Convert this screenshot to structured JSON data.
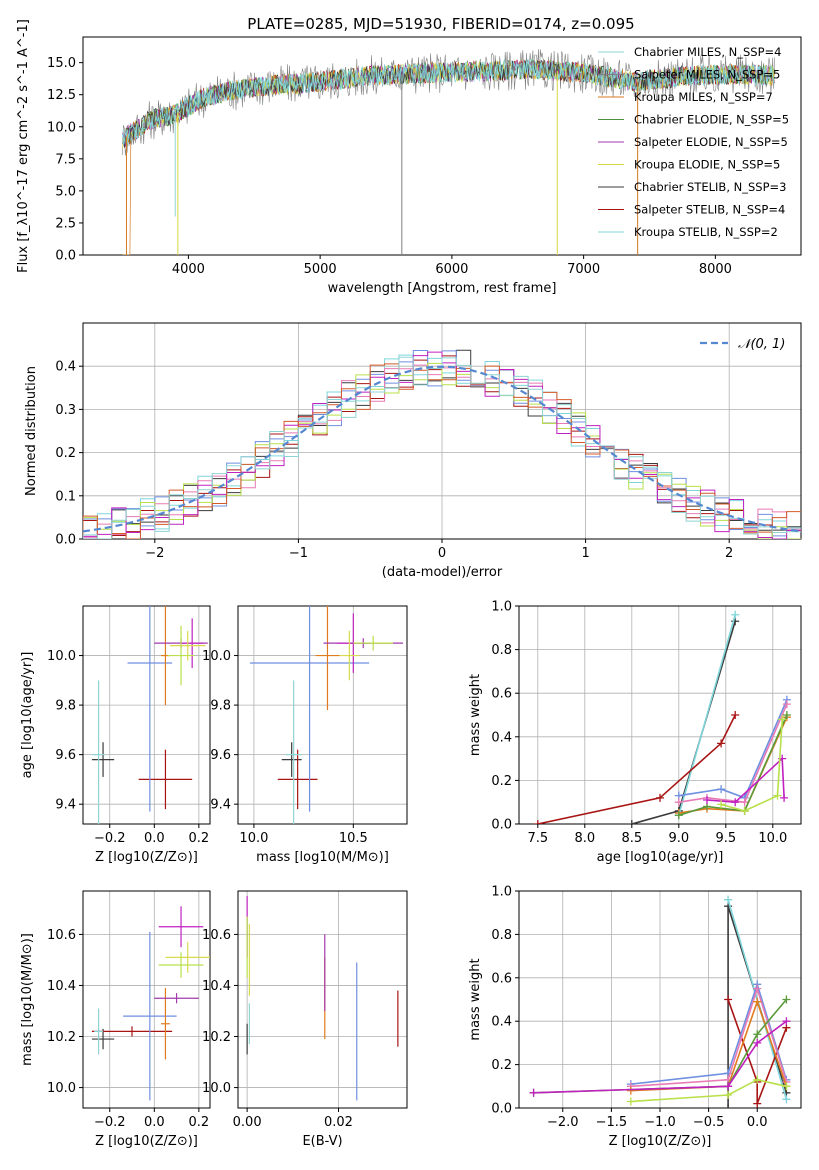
{
  "title": "PLATE=0285, MJD=51930, FIBERID=0174, z=0.095",
  "colors": [
    "#8fd3d3",
    "#7b7b7b",
    "#e07c1f",
    "#5a9a3a",
    "#a33aae",
    "#d9d94f",
    "#3b3b3b",
    "#a81414",
    "#7fd6da",
    "#6f8fe0",
    "#e87ab5",
    "#b8e04a",
    "#c020c0",
    "#d45a2a"
  ],
  "chart_data": [
    {
      "type": "line",
      "panel": "spectrum",
      "xlabel": "wavelength [Angstrom, rest frame]",
      "ylabel": "Flux [f_λ10^-17 erg cm^-2 s^-1 A^-1]",
      "xlim": [
        3200,
        8650
      ],
      "ylim": [
        0,
        17
      ],
      "xticks": [
        "4000",
        "5000",
        "6000",
        "7000",
        "8000"
      ],
      "yticks": [
        "0.0",
        "2.5",
        "5.0",
        "7.5",
        "10.0",
        "12.5",
        "15.0"
      ],
      "legend_position": "right",
      "series": [
        {
          "name": "Chabrier MILES, N_SSP=4"
        },
        {
          "name": "Salpeter MILES, N_SSP=5"
        },
        {
          "name": "Kroupa MILES, N_SSP=7"
        },
        {
          "name": "Chabrier ELODIE, N_SSP=5"
        },
        {
          "name": "Salpeter ELODIE, N_SSP=5"
        },
        {
          "name": "Kroupa ELODIE, N_SSP=5"
        },
        {
          "name": "Chabrier STELIB, N_SSP=3"
        },
        {
          "name": "Salpeter STELIB, N_SSP=4"
        },
        {
          "name": "Kroupa STELIB, N_SSP=2"
        }
      ],
      "trend": {
        "x": [
          3500,
          3700,
          3900,
          4100,
          4300,
          4600,
          5000,
          5400,
          5800,
          6200,
          6600,
          7000,
          7400,
          7800,
          8200,
          8450
        ],
        "y": [
          9.0,
          10.5,
          11.0,
          12.2,
          12.8,
          13.2,
          13.5,
          14.0,
          14.2,
          14.3,
          14.5,
          14.2,
          13.5,
          14.0,
          14.1,
          14.0
        ]
      }
    },
    {
      "type": "line",
      "panel": "residual-histogram",
      "xlabel": "(data-model)/error",
      "ylabel": "Normed distribution",
      "xlim": [
        -2.5,
        2.5
      ],
      "ylim": [
        0,
        0.5
      ],
      "xticks": [
        "−2",
        "−1",
        "0",
        "1",
        "2"
      ],
      "yticks": [
        "0.0",
        "0.1",
        "0.2",
        "0.3",
        "0.4"
      ],
      "legend": [
        "𝒩(0, 1)"
      ],
      "legend_position": "upper right",
      "bins": 50
    },
    {
      "type": "scatter",
      "panel": "age-vs-Z",
      "xlabel": "Z [log10(Z/Z⊙)]",
      "ylabel": "age  [log10(age/yr)]",
      "xlim": [
        -0.32,
        0.25
      ],
      "ylim": [
        9.32,
        10.2
      ],
      "xticks": [
        "−0.2",
        "0.0",
        "0.2"
      ],
      "yticks": [
        "9.4",
        "9.6",
        "9.8",
        "10.0"
      ],
      "points": [
        {
          "x": -0.23,
          "y": 9.58,
          "xerr": 0.05,
          "yerr": 0.07
        },
        {
          "x": 0.05,
          "y": 9.5,
          "xerr": 0.12,
          "yerr": 0.12
        },
        {
          "x": -0.25,
          "y": 9.6,
          "xerr": 0.03,
          "yerr": 0.3
        },
        {
          "x": -0.02,
          "y": 9.97,
          "xerr": 0.1,
          "yerr": 0.6
        },
        {
          "x": 0.05,
          "y": 10.0,
          "xerr": 0.02,
          "yerr": 0.2
        },
        {
          "x": 0.12,
          "y": 10.05,
          "xerr": 0.12,
          "yerr": 0.02
        },
        {
          "x": 0.17,
          "y": 10.05,
          "xerr": 0.05,
          "yerr": 0.1
        },
        {
          "x": 0.15,
          "y": 10.04,
          "xerr": 0.08,
          "yerr": 0.06
        },
        {
          "x": 0.12,
          "y": 10.0,
          "xerr": 0.06,
          "yerr": 0.12
        }
      ]
    },
    {
      "type": "scatter",
      "panel": "age-vs-mass",
      "xlabel": "mass [log10(M/M⊙)]",
      "xlim": [
        9.92,
        10.77
      ],
      "ylim": [
        9.32,
        10.2
      ],
      "xticks": [
        "10.0",
        "10.5"
      ],
      "yticks": [
        "9.4",
        "9.6",
        "9.8",
        "10.0"
      ],
      "points": [
        {
          "x": 10.19,
          "y": 9.58,
          "xerr": 0.05,
          "yerr": 0.07
        },
        {
          "x": 10.22,
          "y": 9.5,
          "xerr": 0.1,
          "yerr": 0.12
        },
        {
          "x": 10.2,
          "y": 9.6,
          "xerr": 0.04,
          "yerr": 0.3
        },
        {
          "x": 10.28,
          "y": 9.97,
          "xerr": 0.3,
          "yerr": 0.6
        },
        {
          "x": 10.37,
          "y": 10.0,
          "xerr": 0.06,
          "yerr": 0.22
        },
        {
          "x": 10.55,
          "y": 10.05,
          "xerr": 0.2,
          "yerr": 0.02
        },
        {
          "x": 10.5,
          "y": 10.05,
          "xerr": 0.08,
          "yerr": 0.12
        },
        {
          "x": 10.48,
          "y": 10.0,
          "xerr": 0.05,
          "yerr": 0.1
        },
        {
          "x": 10.6,
          "y": 10.05,
          "xerr": 0.1,
          "yerr": 0.03
        }
      ]
    },
    {
      "type": "line",
      "panel": "mass-weight-vs-age",
      "xlabel": "age  [log10(age/yr)]",
      "ylabel": "mass weight",
      "xlim": [
        7.3,
        10.3
      ],
      "ylim": [
        0,
        1.0
      ],
      "xticks": [
        "7.5",
        "8.0",
        "8.5",
        "9.0",
        "9.5",
        "10.0"
      ],
      "yticks": [
        "0.0",
        "0.2",
        "0.4",
        "0.6",
        "0.8",
        "1.0"
      ],
      "series": [
        {
          "x": [
            8.5,
            9.0,
            9.6
          ],
          "y": [
            0.0,
            0.06,
            0.93
          ]
        },
        {
          "x": [
            9.0,
            9.6
          ],
          "y": [
            0.04,
            0.96
          ]
        },
        {
          "x": [
            7.5,
            8.8,
            9.45,
            9.6
          ],
          "y": [
            0.0,
            0.12,
            0.37,
            0.5
          ]
        },
        {
          "x": [
            9.0,
            9.45,
            9.7,
            10.15
          ],
          "y": [
            0.13,
            0.16,
            0.12,
            0.57
          ]
        },
        {
          "x": [
            9.0,
            9.3,
            9.7,
            10.15
          ],
          "y": [
            0.1,
            0.12,
            0.1,
            0.55
          ]
        },
        {
          "x": [
            9.0,
            9.3,
            9.7,
            10.15
          ],
          "y": [
            0.05,
            0.07,
            0.06,
            0.49
          ]
        },
        {
          "x": [
            9.0,
            9.3,
            9.7,
            10.15
          ],
          "y": [
            0.04,
            0.08,
            0.06,
            0.5
          ]
        },
        {
          "x": [
            9.3,
            9.6,
            10.1,
            10.12
          ],
          "y": [
            0.11,
            0.1,
            0.3,
            0.12
          ]
        },
        {
          "x": [
            9.45,
            9.7,
            10.05,
            10.1
          ],
          "y": [
            0.09,
            0.06,
            0.13,
            0.48
          ]
        }
      ]
    },
    {
      "type": "scatter",
      "panel": "mass-vs-Z",
      "xlabel": "Z [log10(Z/Z⊙)]",
      "ylabel": "mass [log10(M/M⊙)]",
      "xlim": [
        -0.32,
        0.25
      ],
      "ylim": [
        9.92,
        10.77
      ],
      "xticks": [
        "−0.2",
        "0.0",
        "0.2"
      ],
      "yticks": [
        "10.0",
        "10.2",
        "10.4",
        "10.6"
      ],
      "points": [
        {
          "x": -0.23,
          "y": 10.19,
          "xerr": 0.05,
          "yerr": 0.04
        },
        {
          "x": -0.1,
          "y": 10.22,
          "xerr": 0.18,
          "yerr": 0.02
        },
        {
          "x": -0.25,
          "y": 10.22,
          "xerr": 0.02,
          "yerr": 0.09
        },
        {
          "x": -0.02,
          "y": 10.28,
          "xerr": 0.12,
          "yerr": 0.33
        },
        {
          "x": 0.05,
          "y": 10.25,
          "xerr": 0.02,
          "yerr": 0.14
        },
        {
          "x": 0.1,
          "y": 10.35,
          "xerr": 0.1,
          "yerr": 0.02
        },
        {
          "x": 0.12,
          "y": 10.63,
          "xerr": 0.1,
          "yerr": 0.08
        },
        {
          "x": 0.15,
          "y": 10.51,
          "xerr": 0.1,
          "yerr": 0.06
        },
        {
          "x": 0.12,
          "y": 10.48,
          "xerr": 0.1,
          "yerr": 0.05
        }
      ]
    },
    {
      "type": "scatter",
      "panel": "mass-vs-EBV",
      "xlabel": "E(B-V)",
      "xlim": [
        -0.002,
        0.035
      ],
      "ylim": [
        9.92,
        10.77
      ],
      "xticks": [
        "0.00",
        "0.02"
      ],
      "yticks": [
        "10.0",
        "10.2",
        "10.4",
        "10.6"
      ],
      "points": [
        {
          "x": 0.0,
          "y": 10.19,
          "yerr": 0.06
        },
        {
          "x": 0.033,
          "y": 10.27,
          "yerr": 0.11
        },
        {
          "x": 0.0005,
          "y": 10.25,
          "yerr": 0.08
        },
        {
          "x": 0.024,
          "y": 10.22,
          "yerr": 0.27
        },
        {
          "x": 0.017,
          "y": 10.35,
          "yerr": 0.16
        },
        {
          "x": 0.017,
          "y": 10.45,
          "yerr": 0.15
        },
        {
          "x": 0.0,
          "y": 10.63,
          "yerr": 0.12
        },
        {
          "x": 0.0005,
          "y": 10.5,
          "yerr": 0.14
        },
        {
          "x": 0.0,
          "y": 10.55,
          "yerr": 0.12
        }
      ]
    },
    {
      "type": "line",
      "panel": "mass-weight-vs-Z",
      "xlabel": "Z [log10(Z/Z⊙)]",
      "ylabel": "mass weight",
      "xlim": [
        -2.45,
        0.45
      ],
      "ylim": [
        0,
        1.0
      ],
      "xticks": [
        "−2.0",
        "−1.5",
        "−1.0",
        "−0.5",
        "0.0"
      ],
      "yticks": [
        "0.0",
        "0.2",
        "0.4",
        "0.6",
        "0.8",
        "1.0"
      ],
      "series": [
        {
          "x": [
            -0.3,
            -0.3,
            0.3
          ],
          "y": [
            0.0,
            0.93,
            0.07
          ]
        },
        {
          "x": [
            -0.3,
            0.3
          ],
          "y": [
            0.96,
            0.04
          ]
        },
        {
          "x": [
            -0.3,
            0.0,
            0.0,
            0.3
          ],
          "y": [
            0.5,
            0.12,
            0.02,
            0.37
          ]
        },
        {
          "x": [
            -1.3,
            -0.3,
            0.0,
            0.3
          ],
          "y": [
            0.11,
            0.16,
            0.57,
            0.13
          ]
        },
        {
          "x": [
            -1.3,
            -0.3,
            0.0,
            0.3
          ],
          "y": [
            0.1,
            0.13,
            0.55,
            0.12
          ]
        },
        {
          "x": [
            -1.3,
            -0.3,
            0.0,
            0.3
          ],
          "y": [
            0.08,
            0.1,
            0.49,
            0.1
          ]
        },
        {
          "x": [
            -2.3,
            -0.3,
            0.0,
            0.3
          ],
          "y": [
            0.07,
            0.1,
            0.34,
            0.5
          ]
        },
        {
          "x": [
            -2.3,
            -0.3,
            0.0,
            0.3
          ],
          "y": [
            0.07,
            0.1,
            0.3,
            0.4
          ]
        },
        {
          "x": [
            -1.3,
            -0.3,
            0.0,
            0.3
          ],
          "y": [
            0.03,
            0.06,
            0.13,
            0.1
          ]
        }
      ]
    }
  ]
}
